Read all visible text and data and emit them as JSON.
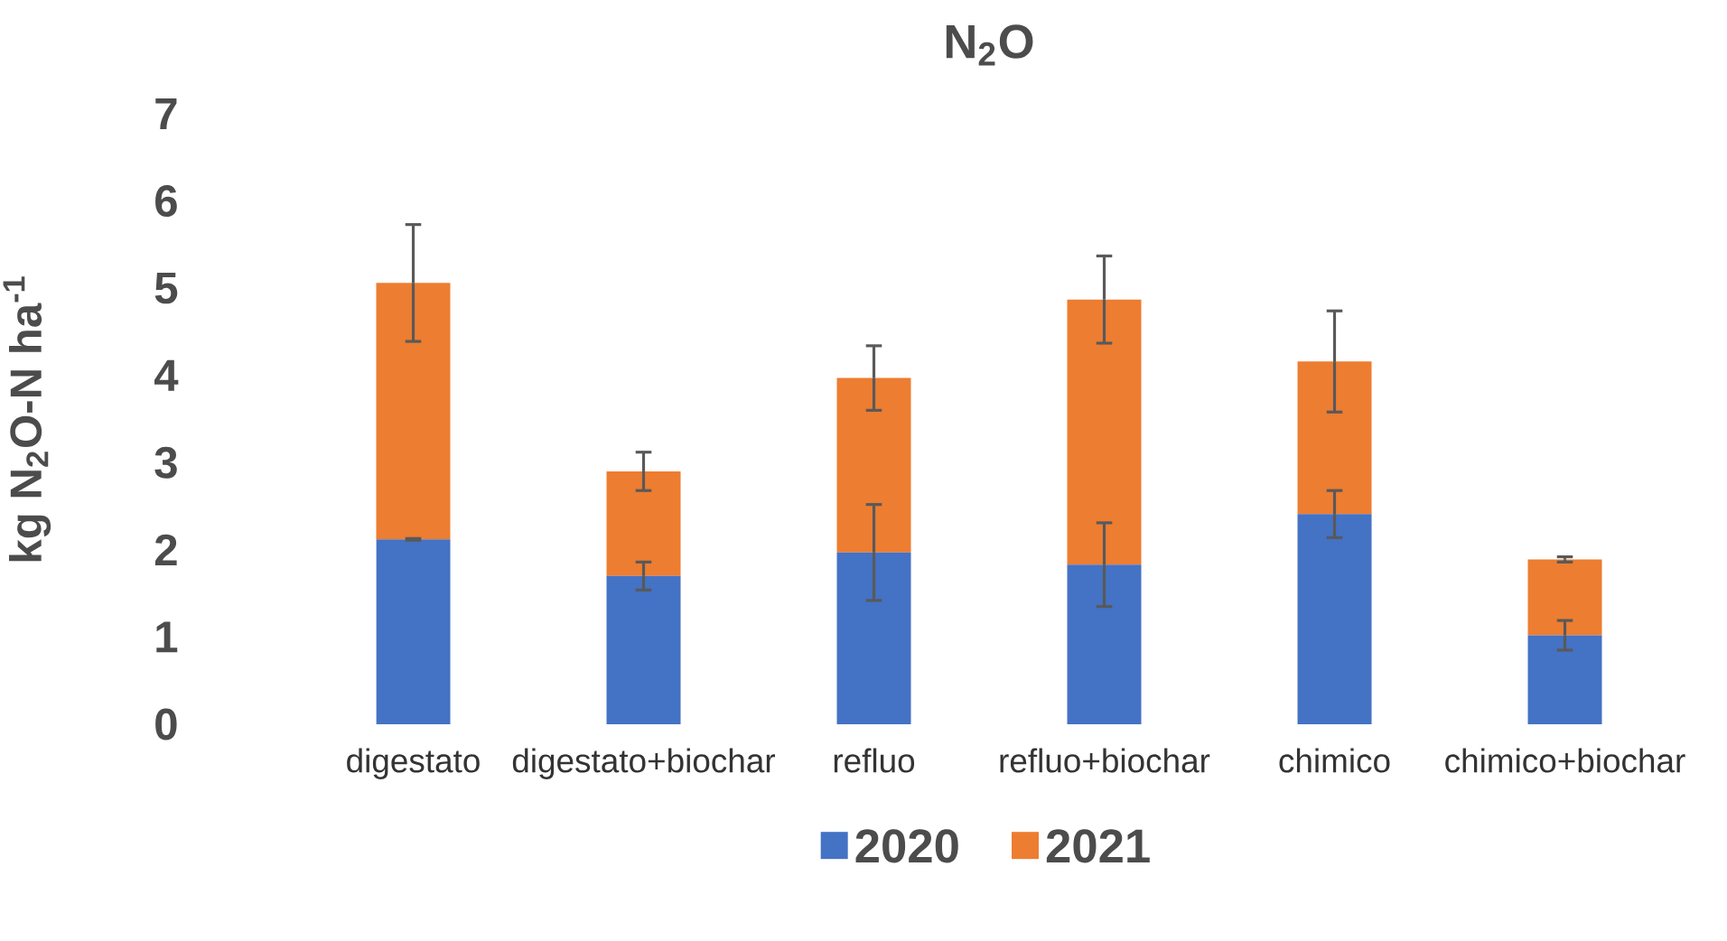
{
  "chart_data": {
    "type": "bar",
    "stacked": true,
    "title": "N$_{2}$O",
    "ylabel": "kg N$_{2}$O-N ha$^{-1}$",
    "categories": [
      "digestato",
      "digestato+biochar",
      "refluo",
      "refluo+biochar",
      "chimico",
      "chimico+biochar"
    ],
    "series": [
      {
        "name": "2020",
        "color": "#4472c4",
        "values": [
          2.12,
          1.7,
          1.97,
          1.83,
          2.41,
          1.02
        ],
        "errors": [
          0.01,
          0.16,
          0.55,
          0.48,
          0.27,
          0.17
        ]
      },
      {
        "name": "2021",
        "color": "#ed7d31",
        "values": [
          2.94,
          1.2,
          2.0,
          3.04,
          1.75,
          0.87
        ],
        "errors": [
          0.67,
          0.22,
          0.37,
          0.5,
          0.58,
          0.03
        ]
      }
    ],
    "ylim": [
      0,
      7
    ],
    "yticks": [
      0,
      1,
      2,
      3,
      4,
      5,
      6,
      7
    ],
    "legend": "bottom"
  }
}
